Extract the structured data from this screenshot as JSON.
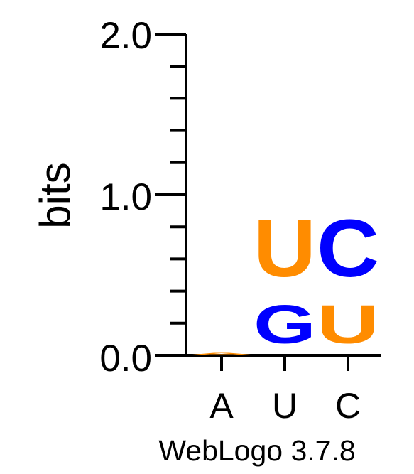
{
  "credit": "WebLogo 3.7.8",
  "chart_data": {
    "type": "sequence-logo",
    "ylabel": "bits",
    "ylim": [
      0,
      2.0
    ],
    "ytick_labels": [
      "0.0",
      "1.0",
      "2.0"
    ],
    "ytick_values": [
      0,
      1.0,
      2.0
    ],
    "minor_tick_step": 0.2,
    "categories": [
      "A",
      "U",
      "C"
    ],
    "colors": {
      "U": "#FF8C00",
      "C": "#0000FF",
      "G": "#0000FF",
      "A": "#FF8C00"
    },
    "stacks": [
      {
        "position": "A",
        "letters": [
          {
            "letter": "A",
            "height": 0.02
          }
        ]
      },
      {
        "position": "U",
        "letters": [
          {
            "letter": "G",
            "height": 0.38
          },
          {
            "letter": "U",
            "height": 0.57
          }
        ]
      },
      {
        "position": "C",
        "letters": [
          {
            "letter": "U",
            "height": 0.38
          },
          {
            "letter": "C",
            "height": 0.57
          }
        ]
      }
    ]
  }
}
